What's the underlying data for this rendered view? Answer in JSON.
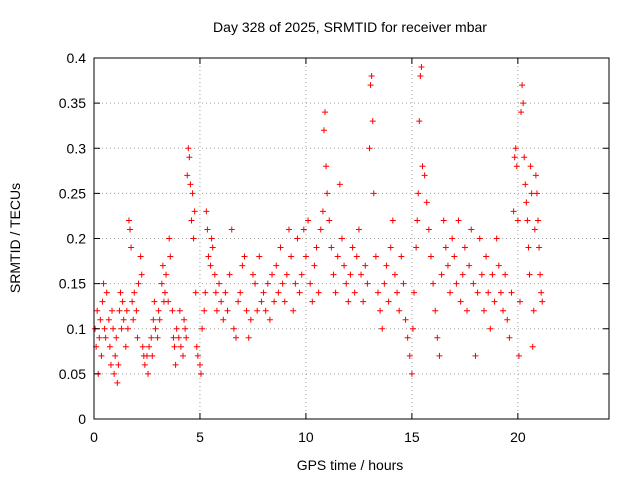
{
  "chart_data": {
    "type": "scatter",
    "title": "Day 328 of 2025, SRMTID for receiver mbar",
    "xlabel": "GPS time / hours",
    "ylabel": "SRMTID / TECUs",
    "xlim": [
      0,
      24.3
    ],
    "ylim": [
      0,
      0.4
    ],
    "x_ticks": [
      0,
      5,
      10,
      15,
      20
    ],
    "x_tick_labels": [
      "0",
      "5",
      "10",
      "15",
      "20"
    ],
    "y_ticks": [
      0,
      0.05,
      0.1,
      0.15,
      0.2,
      0.25,
      0.3,
      0.35,
      0.4
    ],
    "y_tick_labels": [
      "0",
      "0.05",
      "0.1",
      "0.15",
      "0.2",
      "0.25",
      "0.3",
      "0.35",
      "0.4"
    ],
    "grid": true,
    "marker": "+",
    "series_color": "#ff0000",
    "series": [
      {
        "name": "SRMTID",
        "points": [
          [
            0.05,
            0.1
          ],
          [
            0.1,
            0.08
          ],
          [
            0.15,
            0.12
          ],
          [
            0.2,
            0.05
          ],
          [
            0.25,
            0.09
          ],
          [
            0.3,
            0.11
          ],
          [
            0.35,
            0.07
          ],
          [
            0.4,
            0.13
          ],
          [
            0.45,
            0.15
          ],
          [
            0.5,
            0.1
          ],
          [
            0.55,
            0.09
          ],
          [
            0.6,
            0.14
          ],
          [
            0.7,
            0.11
          ],
          [
            0.75,
            0.08
          ],
          [
            0.8,
            0.06
          ],
          [
            0.85,
            0.12
          ],
          [
            0.9,
            0.1
          ],
          [
            0.95,
            0.05
          ],
          [
            1.0,
            0.07
          ],
          [
            1.05,
            0.09
          ],
          [
            1.1,
            0.04
          ],
          [
            1.15,
            0.06
          ],
          [
            1.2,
            0.12
          ],
          [
            1.25,
            0.14
          ],
          [
            1.3,
            0.1
          ],
          [
            1.35,
            0.13
          ],
          [
            1.4,
            0.11
          ],
          [
            1.5,
            0.08
          ],
          [
            1.55,
            0.12
          ],
          [
            1.6,
            0.1
          ],
          [
            1.65,
            0.22
          ],
          [
            1.7,
            0.21
          ],
          [
            1.75,
            0.19
          ],
          [
            1.8,
            0.13
          ],
          [
            1.85,
            0.11
          ],
          [
            1.9,
            0.14
          ],
          [
            2.0,
            0.12
          ],
          [
            2.05,
            0.09
          ],
          [
            2.1,
            0.15
          ],
          [
            2.2,
            0.18
          ],
          [
            2.25,
            0.16
          ],
          [
            2.3,
            0.08
          ],
          [
            2.35,
            0.07
          ],
          [
            2.4,
            0.06
          ],
          [
            2.5,
            0.07
          ],
          [
            2.55,
            0.05
          ],
          [
            2.6,
            0.08
          ],
          [
            2.7,
            0.09
          ],
          [
            2.75,
            0.07
          ],
          [
            2.8,
            0.11
          ],
          [
            2.85,
            0.13
          ],
          [
            2.9,
            0.1
          ],
          [
            3.0,
            0.09
          ],
          [
            3.05,
            0.12
          ],
          [
            3.1,
            0.11
          ],
          [
            3.2,
            0.15
          ],
          [
            3.25,
            0.17
          ],
          [
            3.3,
            0.13
          ],
          [
            3.35,
            0.14
          ],
          [
            3.4,
            0.16
          ],
          [
            3.5,
            0.13
          ],
          [
            3.55,
            0.2
          ],
          [
            3.6,
            0.18
          ],
          [
            3.7,
            0.12
          ],
          [
            3.75,
            0.09
          ],
          [
            3.8,
            0.08
          ],
          [
            3.85,
            0.06
          ],
          [
            3.9,
            0.1
          ],
          [
            4.0,
            0.09
          ],
          [
            4.05,
            0.12
          ],
          [
            4.1,
            0.08
          ],
          [
            4.2,
            0.07
          ],
          [
            4.25,
            0.11
          ],
          [
            4.3,
            0.1
          ],
          [
            4.35,
            0.09
          ],
          [
            4.4,
            0.27
          ],
          [
            4.45,
            0.3
          ],
          [
            4.5,
            0.29
          ],
          [
            4.55,
            0.26
          ],
          [
            4.6,
            0.22
          ],
          [
            4.65,
            0.25
          ],
          [
            4.7,
            0.2
          ],
          [
            4.75,
            0.23
          ],
          [
            4.8,
            0.14
          ],
          [
            4.85,
            0.08
          ],
          [
            4.9,
            0.07
          ],
          [
            5.0,
            0.06
          ],
          [
            5.05,
            0.05
          ],
          [
            5.1,
            0.1
          ],
          [
            5.2,
            0.12
          ],
          [
            5.25,
            0.14
          ],
          [
            5.3,
            0.23
          ],
          [
            5.35,
            0.21
          ],
          [
            5.4,
            0.18
          ],
          [
            5.5,
            0.17
          ],
          [
            5.55,
            0.2
          ],
          [
            5.6,
            0.19
          ],
          [
            5.7,
            0.16
          ],
          [
            5.75,
            0.14
          ],
          [
            5.8,
            0.12
          ],
          [
            5.9,
            0.15
          ],
          [
            6.0,
            0.13
          ],
          [
            6.1,
            0.11
          ],
          [
            6.2,
            0.14
          ],
          [
            6.3,
            0.12
          ],
          [
            6.4,
            0.16
          ],
          [
            6.5,
            0.21
          ],
          [
            6.6,
            0.1
          ],
          [
            6.7,
            0.09
          ],
          [
            6.8,
            0.13
          ],
          [
            6.9,
            0.14
          ],
          [
            7.0,
            0.17
          ],
          [
            7.1,
            0.18
          ],
          [
            7.2,
            0.12
          ],
          [
            7.3,
            0.09
          ],
          [
            7.4,
            0.11
          ],
          [
            7.5,
            0.16
          ],
          [
            7.6,
            0.15
          ],
          [
            7.7,
            0.12
          ],
          [
            7.8,
            0.18
          ],
          [
            7.9,
            0.13
          ],
          [
            8.0,
            0.14
          ],
          [
            8.1,
            0.12
          ],
          [
            8.2,
            0.15
          ],
          [
            8.3,
            0.11
          ],
          [
            8.4,
            0.16
          ],
          [
            8.5,
            0.13
          ],
          [
            8.6,
            0.17
          ],
          [
            8.7,
            0.14
          ],
          [
            8.8,
            0.19
          ],
          [
            8.9,
            0.15
          ],
          [
            9.0,
            0.13
          ],
          [
            9.1,
            0.16
          ],
          [
            9.2,
            0.21
          ],
          [
            9.3,
            0.18
          ],
          [
            9.4,
            0.12
          ],
          [
            9.5,
            0.15
          ],
          [
            9.6,
            0.2
          ],
          [
            9.7,
            0.14
          ],
          [
            9.8,
            0.16
          ],
          [
            9.9,
            0.21
          ],
          [
            10.0,
            0.18
          ],
          [
            10.1,
            0.22
          ],
          [
            10.2,
            0.15
          ],
          [
            10.3,
            0.13
          ],
          [
            10.4,
            0.17
          ],
          [
            10.5,
            0.19
          ],
          [
            10.6,
            0.14
          ],
          [
            10.7,
            0.21
          ],
          [
            10.8,
            0.23
          ],
          [
            10.85,
            0.32
          ],
          [
            10.9,
            0.34
          ],
          [
            10.95,
            0.28
          ],
          [
            11.0,
            0.25
          ],
          [
            11.1,
            0.22
          ],
          [
            11.2,
            0.19
          ],
          [
            11.3,
            0.16
          ],
          [
            11.4,
            0.14
          ],
          [
            11.5,
            0.18
          ],
          [
            11.6,
            0.26
          ],
          [
            11.7,
            0.2
          ],
          [
            11.8,
            0.17
          ],
          [
            11.9,
            0.15
          ],
          [
            12.0,
            0.13
          ],
          [
            12.1,
            0.16
          ],
          [
            12.2,
            0.19
          ],
          [
            12.3,
            0.14
          ],
          [
            12.4,
            0.18
          ],
          [
            12.5,
            0.21
          ],
          [
            12.6,
            0.16
          ],
          [
            12.7,
            0.13
          ],
          [
            12.8,
            0.17
          ],
          [
            12.9,
            0.15
          ],
          [
            13.0,
            0.3
          ],
          [
            13.05,
            0.37
          ],
          [
            13.1,
            0.38
          ],
          [
            13.15,
            0.33
          ],
          [
            13.2,
            0.25
          ],
          [
            13.3,
            0.18
          ],
          [
            13.4,
            0.14
          ],
          [
            13.5,
            0.12
          ],
          [
            13.6,
            0.1
          ],
          [
            13.7,
            0.15
          ],
          [
            13.8,
            0.17
          ],
          [
            13.9,
            0.13
          ],
          [
            14.0,
            0.19
          ],
          [
            14.1,
            0.22
          ],
          [
            14.2,
            0.16
          ],
          [
            14.3,
            0.14
          ],
          [
            14.4,
            0.12
          ],
          [
            14.5,
            0.18
          ],
          [
            14.6,
            0.15
          ],
          [
            14.7,
            0.11
          ],
          [
            14.8,
            0.09
          ],
          [
            14.9,
            0.07
          ],
          [
            15.0,
            0.05
          ],
          [
            15.05,
            0.1
          ],
          [
            15.1,
            0.14
          ],
          [
            15.2,
            0.19
          ],
          [
            15.25,
            0.22
          ],
          [
            15.3,
            0.25
          ],
          [
            15.35,
            0.33
          ],
          [
            15.4,
            0.38
          ],
          [
            15.45,
            0.39
          ],
          [
            15.5,
            0.28
          ],
          [
            15.6,
            0.27
          ],
          [
            15.7,
            0.24
          ],
          [
            15.8,
            0.21
          ],
          [
            15.9,
            0.18
          ],
          [
            16.0,
            0.15
          ],
          [
            16.1,
            0.12
          ],
          [
            16.2,
            0.09
          ],
          [
            16.3,
            0.07
          ],
          [
            16.4,
            0.16
          ],
          [
            16.5,
            0.22
          ],
          [
            16.6,
            0.19
          ],
          [
            16.7,
            0.17
          ],
          [
            16.8,
            0.14
          ],
          [
            16.9,
            0.2
          ],
          [
            17.0,
            0.18
          ],
          [
            17.1,
            0.15
          ],
          [
            17.2,
            0.22
          ],
          [
            17.3,
            0.13
          ],
          [
            17.4,
            0.16
          ],
          [
            17.5,
            0.19
          ],
          [
            17.6,
            0.12
          ],
          [
            17.7,
            0.17
          ],
          [
            17.8,
            0.21
          ],
          [
            17.9,
            0.15
          ],
          [
            18.0,
            0.07
          ],
          [
            18.1,
            0.14
          ],
          [
            18.2,
            0.2
          ],
          [
            18.3,
            0.16
          ],
          [
            18.4,
            0.12
          ],
          [
            18.5,
            0.18
          ],
          [
            18.6,
            0.14
          ],
          [
            18.7,
            0.1
          ],
          [
            18.8,
            0.16
          ],
          [
            18.9,
            0.13
          ],
          [
            19.0,
            0.2
          ],
          [
            19.1,
            0.17
          ],
          [
            19.2,
            0.14
          ],
          [
            19.3,
            0.12
          ],
          [
            19.4,
            0.16
          ],
          [
            19.5,
            0.11
          ],
          [
            19.6,
            0.09
          ],
          [
            19.7,
            0.14
          ],
          [
            19.8,
            0.23
          ],
          [
            19.85,
            0.29
          ],
          [
            19.9,
            0.3
          ],
          [
            19.95,
            0.28
          ],
          [
            20.0,
            0.22
          ],
          [
            20.05,
            0.07
          ],
          [
            20.1,
            0.13
          ],
          [
            20.15,
            0.34
          ],
          [
            20.2,
            0.37
          ],
          [
            20.25,
            0.35
          ],
          [
            20.3,
            0.29
          ],
          [
            20.35,
            0.26
          ],
          [
            20.4,
            0.24
          ],
          [
            20.45,
            0.22
          ],
          [
            20.5,
            0.19
          ],
          [
            20.55,
            0.16
          ],
          [
            20.6,
            0.28
          ],
          [
            20.65,
            0.25
          ],
          [
            20.7,
            0.08
          ],
          [
            20.75,
            0.12
          ],
          [
            20.8,
            0.21
          ],
          [
            20.85,
            0.27
          ],
          [
            20.9,
            0.25
          ],
          [
            20.95,
            0.22
          ],
          [
            21.0,
            0.19
          ],
          [
            21.05,
            0.16
          ],
          [
            21.1,
            0.14
          ],
          [
            21.15,
            0.13
          ]
        ]
      }
    ]
  }
}
